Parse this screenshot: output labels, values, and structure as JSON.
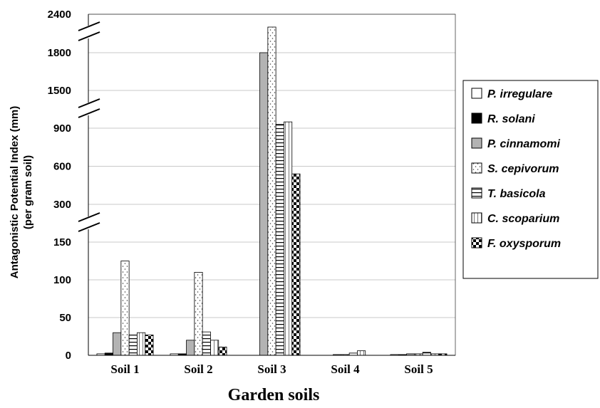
{
  "chart_data": {
    "type": "bar",
    "xlabel": "Garden soils",
    "ylabel": "Antagonistic Potential Index (mm)",
    "ylabel2": "(per gram soil)",
    "categories": [
      "Soil 1",
      "Soil 2",
      "Soil 3",
      "Soil 4",
      "Soil 5"
    ],
    "y_axis_broken": true,
    "y_segments": [
      {
        "range": [
          0,
          150
        ],
        "ticks": [
          "0",
          "50",
          "100",
          "150"
        ]
      },
      {
        "range": [
          300,
          900
        ],
        "ticks": [
          "300",
          "600",
          "900"
        ]
      },
      {
        "range": [
          1500,
          2400
        ],
        "ticks": [
          "1500",
          "1800",
          "2400"
        ]
      }
    ],
    "grid": true,
    "legend_position": "right",
    "series": [
      {
        "name": "P. irregulare",
        "pattern": "white",
        "values": [
          2,
          2,
          0,
          0,
          1
        ]
      },
      {
        "name": "R. solani",
        "pattern": "black",
        "values": [
          3,
          2,
          0,
          0,
          1
        ]
      },
      {
        "name": "P. cinnamomi",
        "pattern": "gray",
        "values": [
          30,
          20,
          1800,
          1,
          2
        ]
      },
      {
        "name": "S. cepivorum",
        "pattern": "dots",
        "values": [
          125,
          110,
          2200,
          1,
          2
        ]
      },
      {
        "name": "T. basicola",
        "pattern": "hlines",
        "values": [
          27,
          31,
          960,
          3,
          4
        ]
      },
      {
        "name": "C. scoparium",
        "pattern": "vlines",
        "values": [
          30,
          20,
          1000,
          6,
          2
        ]
      },
      {
        "name": "F. oxysporum",
        "pattern": "checker",
        "values": [
          27,
          11,
          540,
          0,
          2
        ]
      }
    ]
  }
}
